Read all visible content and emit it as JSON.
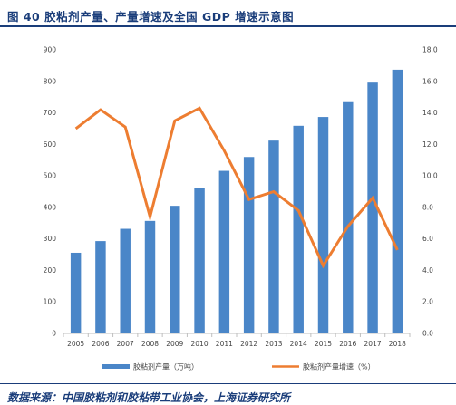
{
  "figure_title": "图 40 胶粘剂产量、产量增速及全国 GDP 增速示意图",
  "source_text": "数据来源：中国胶粘剂和胶粘带工业协会，上海证券研究所",
  "colors": {
    "bar": "#4a86c8",
    "line": "#ed7d31",
    "title": "#1a3d7a"
  },
  "chart_data": {
    "type": "bar",
    "categories": [
      "2005",
      "2006",
      "2007",
      "2008",
      "2009",
      "2010",
      "2011",
      "2012",
      "2013",
      "2014",
      "2015",
      "2016",
      "2017",
      "2018"
    ],
    "series": [
      {
        "name": "胶粘剂产量（万吨）",
        "type": "bar",
        "axis": "left",
        "values": [
          256,
          293,
          332,
          357,
          405,
          462,
          516,
          560,
          612,
          659,
          687,
          734,
          796,
          837
        ]
      },
      {
        "name": "胶粘剂产量增速（%）",
        "type": "line",
        "axis": "right",
        "values": [
          13.0,
          14.2,
          13.1,
          7.4,
          13.5,
          14.3,
          11.6,
          8.5,
          9.0,
          7.8,
          4.3,
          6.8,
          8.6,
          5.3
        ]
      }
    ],
    "ylim_left": [
      0,
      900
    ],
    "yticks_left": [
      "0",
      "100",
      "200",
      "300",
      "400",
      "500",
      "600",
      "700",
      "800",
      "900"
    ],
    "ylim_right": [
      0,
      18
    ],
    "yticks_right": [
      "0.0",
      "2.0",
      "4.0",
      "6.0",
      "8.0",
      "10.0",
      "12.0",
      "14.0",
      "16.0",
      "18.0"
    ],
    "grid": false,
    "legend_position": "bottom"
  }
}
